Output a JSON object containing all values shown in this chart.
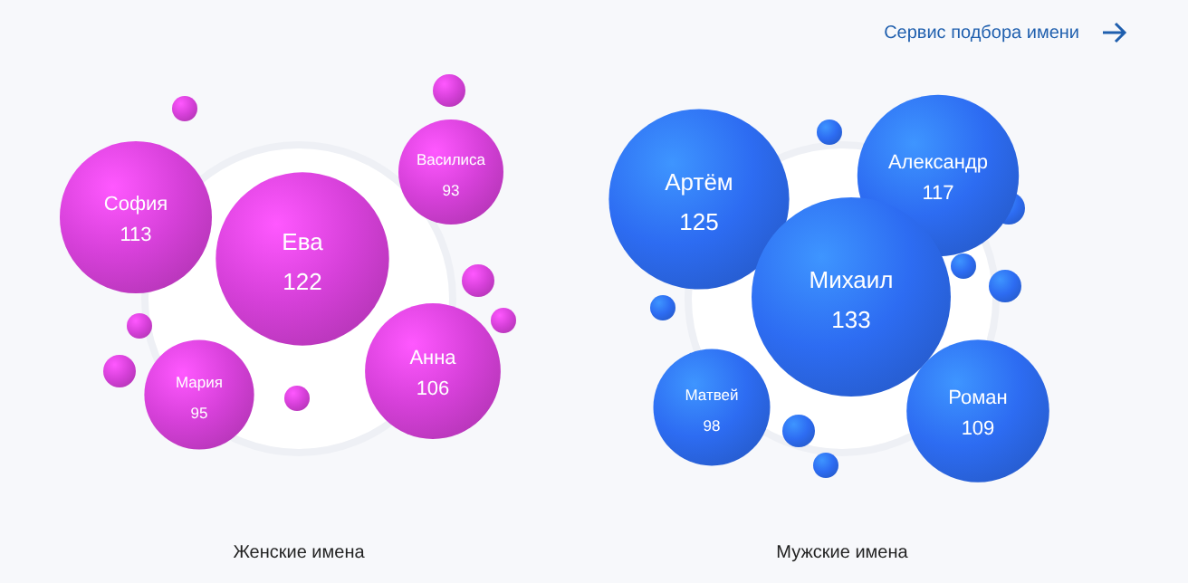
{
  "chart_data": [
    {
      "type": "other",
      "title": "Женские имена",
      "categories": [
        "София",
        "Ева",
        "Василиса",
        "Мария",
        "Анна"
      ],
      "values": [
        113,
        122,
        93,
        95,
        106
      ],
      "color": "#d640d9",
      "data_labels": true
    },
    {
      "type": "other",
      "title": "Мужские имена",
      "categories": [
        "Артём",
        "Александр",
        "Михаил",
        "Матвей",
        "Роман"
      ],
      "values": [
        125,
        117,
        133,
        98,
        109
      ],
      "color": "#2d6cf2",
      "data_labels": true,
      "annotations": [
        "Сервис подбора имени"
      ]
    }
  ]
}
